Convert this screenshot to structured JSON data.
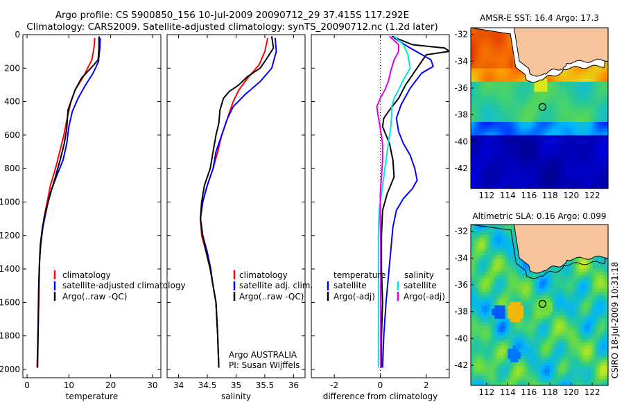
{
  "header": {
    "line1": "Argo profile: CS 5900850_156 10-Jul-2009 20090712_29 37.415S 117.292E",
    "line2": "Climatology: CARS2009. Satellite-adjusted climatology: synTS_20090712.nc (1.2d later)"
  },
  "colors": {
    "climatology": "#ff0000",
    "satellite": "#0000ff",
    "argo": "#000000",
    "sat_cyan": "#00e5e5",
    "argo_magenta": "#e000e0",
    "land": "#f8c49c"
  },
  "side": {
    "stamp": "CSIRO 18-Jul-2009 10:31:18",
    "footer1": "Argo AUSTRALIA",
    "footer2": "PI: Susan Wijffels"
  },
  "legends": {
    "temp": [
      "climatology",
      "satellite-adjusted climatology",
      "Argo(..raw -QC)"
    ],
    "sal": [
      "climatology",
      "satellite adj. clim.",
      "Argo(..raw -QC)"
    ],
    "diff_temp_title": "temperature",
    "diff_sal_title": "salinity",
    "diff_temp": [
      "satellite",
      "Argo(-adj)"
    ],
    "diff_sal": [
      "satellite",
      "Argo(-adj)"
    ]
  },
  "maps": {
    "sst_title": "AMSR-E SST: 16.4 Argo: 17.3",
    "sla_title": "Altimetric SLA: 0.16 Argo: 0.099",
    "x_ticks": [
      "112",
      "114",
      "116",
      "118",
      "120",
      "122"
    ],
    "y_ticks": [
      "-32",
      "-34",
      "-36",
      "-38",
      "-40",
      "-42"
    ],
    "float_lon": 117.292,
    "float_lat": -37.415
  },
  "chart_data": [
    {
      "type": "line",
      "xlabel": "temperature",
      "ylabel": "",
      "xlim": [
        -1,
        32
      ],
      "ylim": [
        2050,
        0
      ],
      "x_ticks": [
        0,
        10,
        20,
        30
      ],
      "y_ticks": [
        0,
        200,
        400,
        600,
        800,
        1000,
        1200,
        1400,
        1600,
        1800,
        2000
      ],
      "series": [
        {
          "name": "climatology",
          "points": [
            [
              16.2,
              20
            ],
            [
              16.0,
              80
            ],
            [
              15.5,
              150
            ],
            [
              13.5,
              250
            ],
            [
              11.5,
              330
            ],
            [
              10.5,
              400
            ],
            [
              9.6,
              500
            ],
            [
              8.8,
              600
            ],
            [
              7.8,
              700
            ],
            [
              6.8,
              800
            ],
            [
              5.6,
              900
            ],
            [
              4.8,
              1000
            ],
            [
              4.0,
              1100
            ],
            [
              3.5,
              1200
            ],
            [
              3.1,
              1300
            ],
            [
              2.9,
              1400
            ],
            [
              2.8,
              1500
            ],
            [
              2.7,
              1600
            ],
            [
              2.6,
              1800
            ],
            [
              2.4,
              1990
            ]
          ]
        },
        {
          "name": "satellite-adjusted climatology",
          "points": [
            [
              17.5,
              20
            ],
            [
              17.4,
              80
            ],
            [
              17.1,
              160
            ],
            [
              15.8,
              230
            ],
            [
              14.0,
              300
            ],
            [
              12.2,
              380
            ],
            [
              10.8,
              460
            ],
            [
              10.0,
              550
            ],
            [
              9.5,
              650
            ],
            [
              8.6,
              750
            ],
            [
              7.0,
              850
            ],
            [
              5.5,
              950
            ],
            [
              4.6,
              1050
            ],
            [
              3.8,
              1150
            ],
            [
              3.3,
              1250
            ],
            [
              3.0,
              1350
            ],
            [
              2.9,
              1450
            ],
            [
              2.8,
              1600
            ],
            [
              2.6,
              1800
            ],
            [
              2.5,
              1990
            ]
          ]
        },
        {
          "name": "Argo(..raw -QC)",
          "points": [
            [
              17.2,
              10
            ],
            [
              17.2,
              80
            ],
            [
              17.0,
              150
            ],
            [
              16.0,
              180
            ],
            [
              13.0,
              260
            ],
            [
              11.5,
              330
            ],
            [
              10.5,
              400
            ],
            [
              9.8,
              450
            ],
            [
              9.5,
              560
            ],
            [
              8.9,
              650
            ],
            [
              7.9,
              750
            ],
            [
              6.8,
              850
            ],
            [
              5.6,
              950
            ],
            [
              4.5,
              1050
            ],
            [
              3.7,
              1150
            ],
            [
              3.2,
              1250
            ],
            [
              3.0,
              1350
            ],
            [
              2.8,
              1500
            ],
            [
              2.7,
              1700
            ],
            [
              2.6,
              1850
            ],
            [
              2.5,
              1990
            ]
          ]
        }
      ]
    },
    {
      "type": "line",
      "xlabel": "salinity",
      "ylabel": "",
      "xlim": [
        33.8,
        36.2
      ],
      "ylim": [
        2050,
        0
      ],
      "x_ticks": [
        34,
        34.5,
        35,
        35.5,
        36
      ],
      "y_ticks": [
        0,
        200,
        400,
        600,
        800,
        1000,
        1200,
        1400,
        1600,
        1800,
        2000
      ],
      "series": [
        {
          "name": "climatology",
          "points": [
            [
              35.55,
              20
            ],
            [
              35.5,
              100
            ],
            [
              35.4,
              180
            ],
            [
              35.2,
              260
            ],
            [
              35.05,
              330
            ],
            [
              34.95,
              400
            ],
            [
              34.85,
              500
            ],
            [
              34.75,
              600
            ],
            [
              34.68,
              700
            ],
            [
              34.6,
              800
            ],
            [
              34.5,
              900
            ],
            [
              34.42,
              1000
            ],
            [
              34.38,
              1100
            ],
            [
              34.4,
              1200
            ],
            [
              34.48,
              1300
            ],
            [
              34.55,
              1400
            ],
            [
              34.6,
              1500
            ],
            [
              34.65,
              1600
            ],
            [
              34.68,
              1800
            ],
            [
              34.7,
              1990
            ]
          ]
        },
        {
          "name": "satellite adj. clim.",
          "points": [
            [
              35.68,
              20
            ],
            [
              35.7,
              100
            ],
            [
              35.62,
              200
            ],
            [
              35.42,
              280
            ],
            [
              35.15,
              360
            ],
            [
              34.95,
              430
            ],
            [
              34.85,
              500
            ],
            [
              34.75,
              600
            ],
            [
              34.65,
              700
            ],
            [
              34.6,
              800
            ],
            [
              34.5,
              900
            ],
            [
              34.42,
              1000
            ],
            [
              34.38,
              1100
            ],
            [
              34.42,
              1200
            ],
            [
              34.5,
              1300
            ],
            [
              34.56,
              1400
            ],
            [
              34.6,
              1500
            ],
            [
              34.65,
              1600
            ],
            [
              34.68,
              1800
            ],
            [
              34.7,
              1990
            ]
          ]
        },
        {
          "name": "Argo(..raw -QC)",
          "points": [
            [
              35.62,
              10
            ],
            [
              35.65,
              80
            ],
            [
              35.52,
              150
            ],
            [
              35.42,
              200
            ],
            [
              35.2,
              250
            ],
            [
              35.05,
              300
            ],
            [
              34.88,
              340
            ],
            [
              34.78,
              380
            ],
            [
              34.72,
              450
            ],
            [
              34.7,
              530
            ],
            [
              34.65,
              600
            ],
            [
              34.6,
              700
            ],
            [
              34.55,
              800
            ],
            [
              34.45,
              900
            ],
            [
              34.4,
              1000
            ],
            [
              34.38,
              1100
            ],
            [
              34.42,
              1200
            ],
            [
              34.48,
              1300
            ],
            [
              34.55,
              1400
            ],
            [
              34.6,
              1500
            ],
            [
              34.65,
              1600
            ],
            [
              34.68,
              1800
            ],
            [
              34.7,
              1990
            ]
          ]
        }
      ]
    },
    {
      "type": "line",
      "xlabel": "difference from climatology",
      "ylabel": "",
      "xlim": [
        -3,
        3
      ],
      "ylim": [
        2050,
        0
      ],
      "x_ticks": [
        -2,
        0,
        2
      ],
      "y_ticks": [
        0,
        200,
        400,
        600,
        800,
        1000,
        1200,
        1400,
        1600,
        1800,
        2000
      ],
      "series": [
        {
          "name": "temperature satellite",
          "points": [
            [
              0.6,
              20
            ],
            [
              1.3,
              80
            ],
            [
              2.2,
              150
            ],
            [
              2.3,
              190
            ],
            [
              1.8,
              230
            ],
            [
              1.3,
              320
            ],
            [
              0.9,
              420
            ],
            [
              0.7,
              500
            ],
            [
              0.8,
              580
            ],
            [
              1.0,
              650
            ],
            [
              1.3,
              720
            ],
            [
              1.5,
              800
            ],
            [
              1.6,
              870
            ],
            [
              1.4,
              920
            ],
            [
              1.0,
              980
            ],
            [
              0.7,
              1050
            ],
            [
              0.55,
              1150
            ],
            [
              0.45,
              1300
            ],
            [
              0.35,
              1450
            ],
            [
              0.25,
              1600
            ],
            [
              0.15,
              1800
            ],
            [
              0.1,
              1990
            ]
          ]
        },
        {
          "name": "temperature Argo(-adj)",
          "points": [
            [
              0.5,
              10
            ],
            [
              1.4,
              60
            ],
            [
              2.8,
              80
            ],
            [
              3.0,
              100
            ],
            [
              2.0,
              120
            ],
            [
              1.8,
              160
            ],
            [
              1.5,
              220
            ],
            [
              1.1,
              300
            ],
            [
              0.8,
              380
            ],
            [
              0.4,
              450
            ],
            [
              0.15,
              500
            ],
            [
              0.1,
              550
            ],
            [
              0.4,
              650
            ],
            [
              0.55,
              750
            ],
            [
              0.6,
              850
            ],
            [
              0.3,
              950
            ],
            [
              0.1,
              1050
            ],
            [
              0.05,
              1200
            ],
            [
              0.05,
              1400
            ],
            [
              0.1,
              1600
            ],
            [
              0.05,
              1800
            ],
            [
              0.05,
              1990
            ]
          ]
        },
        {
          "name": "salinity satellite",
          "points": [
            [
              0.6,
              10
            ],
            [
              1.0,
              60
            ],
            [
              1.2,
              120
            ],
            [
              1.3,
              200
            ],
            [
              1.0,
              270
            ],
            [
              0.8,
              330
            ],
            [
              0.6,
              380
            ],
            [
              0.5,
              430
            ],
            [
              0.5,
              480
            ],
            [
              0.45,
              560
            ],
            [
              0.35,
              650
            ],
            [
              0.25,
              750
            ],
            [
              0.15,
              850
            ],
            [
              0.05,
              950
            ],
            [
              -0.05,
              1050
            ],
            [
              -0.08,
              1200
            ],
            [
              -0.08,
              1350
            ],
            [
              -0.08,
              1500
            ],
            [
              -0.08,
              1650
            ],
            [
              -0.08,
              1800
            ],
            [
              -0.08,
              1990
            ]
          ]
        },
        {
          "name": "salinity Argo(-adj)",
          "points": [
            [
              0.4,
              10
            ],
            [
              0.8,
              60
            ],
            [
              0.8,
              100
            ],
            [
              0.6,
              150
            ],
            [
              0.45,
              220
            ],
            [
              0.35,
              280
            ],
            [
              0.2,
              330
            ],
            [
              0.0,
              380
            ],
            [
              -0.15,
              430
            ],
            [
              -0.1,
              480
            ],
            [
              0.0,
              560
            ],
            [
              0.1,
              650
            ],
            [
              0.1,
              750
            ],
            [
              0.05,
              850
            ],
            [
              0.0,
              950
            ],
            [
              0.0,
              1100
            ],
            [
              0.02,
              1300
            ],
            [
              0.02,
              1500
            ],
            [
              0.02,
              1700
            ],
            [
              0.02,
              1990
            ]
          ]
        }
      ]
    }
  ]
}
